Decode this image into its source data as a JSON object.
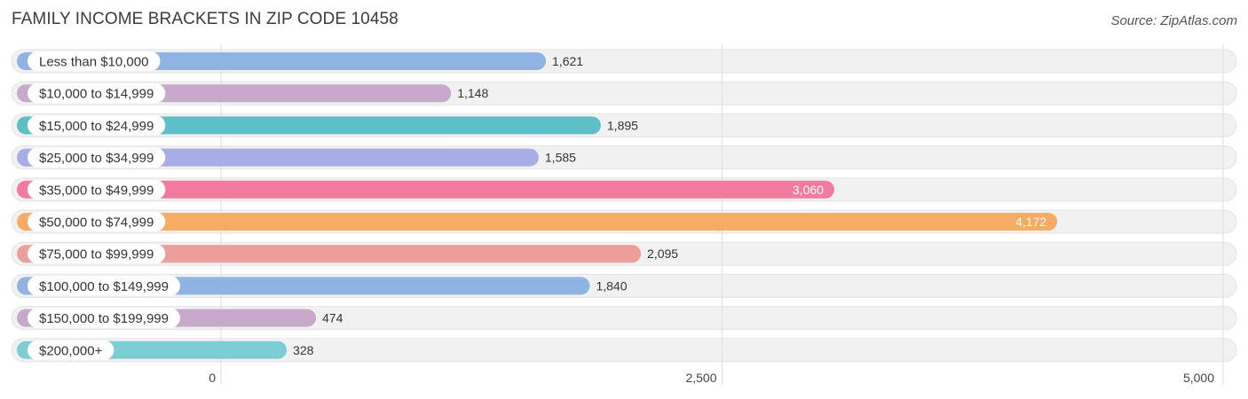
{
  "header": {
    "title": "FAMILY INCOME BRACKETS IN ZIP CODE 10458",
    "source": "Source: ZipAtlas.com"
  },
  "chart_data": {
    "type": "bar",
    "orientation": "horizontal",
    "title": "FAMILY INCOME BRACKETS IN ZIP CODE 10458",
    "categories": [
      "Less than $10,000",
      "$10,000 to $14,999",
      "$15,000 to $24,999",
      "$25,000 to $34,999",
      "$35,000 to $49,999",
      "$50,000 to $74,999",
      "$75,000 to $99,999",
      "$100,000 to $149,999",
      "$150,000 to $199,999",
      "$200,000+"
    ],
    "values": [
      1621,
      1148,
      1895,
      1585,
      3060,
      4172,
      2095,
      1840,
      474,
      328
    ],
    "value_labels": [
      "1,621",
      "1,148",
      "1,895",
      "1,585",
      "3,060",
      "4,172",
      "2,095",
      "1,840",
      "474",
      "328"
    ],
    "colors": [
      "#8fb4e3",
      "#c8a8cb",
      "#5fbfc7",
      "#a7ade6",
      "#f47ba0",
      "#f8ab62",
      "#ec9e9b",
      "#8fb4e3",
      "#c8a8cb",
      "#7ccdd4"
    ],
    "xlim": [
      0,
      5000
    ],
    "x_ticks": [
      0,
      2500,
      5000
    ],
    "x_tick_labels": [
      "0",
      "2,500",
      "5,000"
    ],
    "grid": true,
    "value_label_inside_threshold": 3000
  }
}
